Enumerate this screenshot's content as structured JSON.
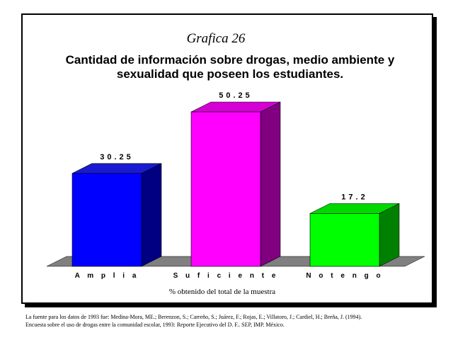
{
  "chart_data": {
    "type": "bar",
    "subtitle": "Grafica 26",
    "title_lines": [
      "Cantidad de información sobre drogas, medio ambiente y",
      "sexualidad que poseen los estudiantes."
    ],
    "categories": [
      "Amplia",
      "Suficiente",
      "No tengo"
    ],
    "values": [
      30.25,
      50.25,
      17.2
    ],
    "value_labels": [
      "30.25",
      "50.25",
      "17.2"
    ],
    "category_labels": [
      "A m p l i a",
      "S u f i c i e n t e",
      "N o  t e n g o"
    ],
    "xlabel": "% obtenido del total de la muestra",
    "ylabel": "",
    "ylim": [
      0,
      55
    ],
    "grid": false,
    "colors": {
      "front": [
        "#0000ff",
        "#ff00ff",
        "#00ff00"
      ],
      "top": [
        "#1a1ad0",
        "#d400d4",
        "#00d800"
      ],
      "side": [
        "#000080",
        "#800080",
        "#008000"
      ],
      "floor": "#808080"
    }
  },
  "source_note": {
    "line1": "La fuente para los datos de 1993 fue: Medina-Mora, ME.; Berenzon, S.; Carreño, S.; Juárez, F.; Rojas, E.; Villatoro, J.; Cardiel, H.; Breña, J. (1994).",
    "line2": "Encuesta sobre el uso de drogas entre la comunidad escolar, 1993: Reporte Ejecutivo del D. F.. SEP, IMP. México."
  }
}
